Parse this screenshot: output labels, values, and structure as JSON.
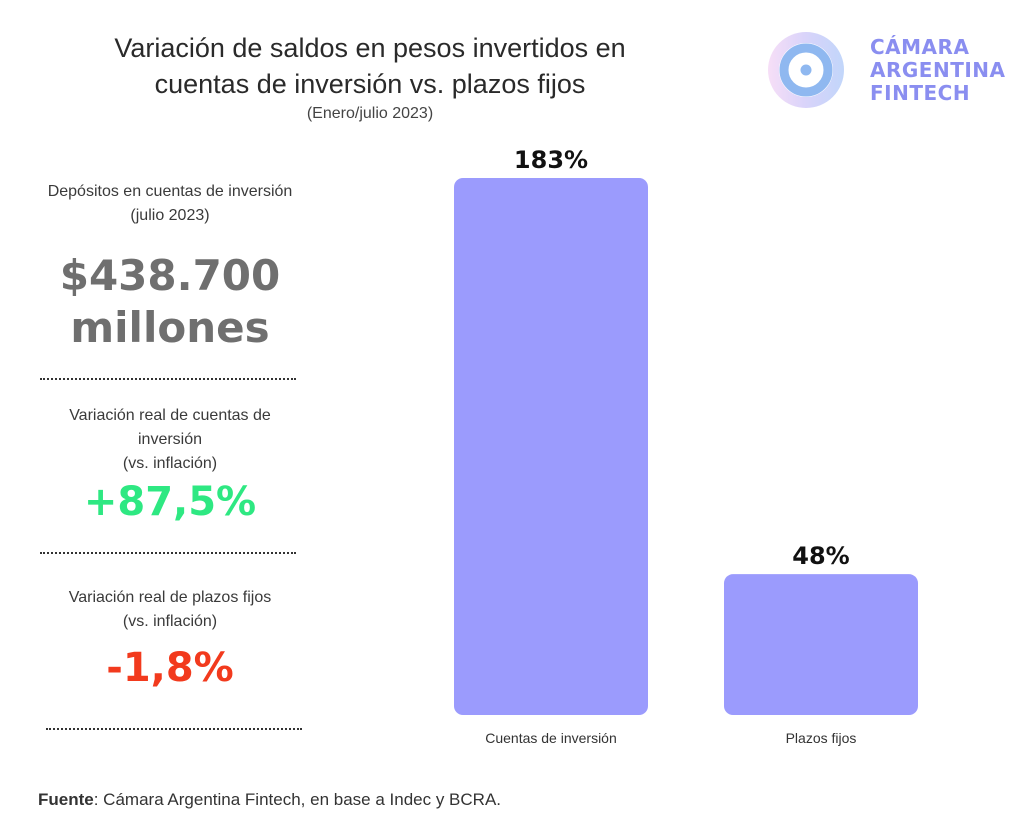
{
  "header": {
    "title_line1": "Variación de saldos en pesos invertidos en",
    "title_line2": "cuentas de inversión vs. plazos fijos",
    "subtitle": "(Enero/julio 2023)"
  },
  "logo": {
    "line1": "CÁMARA",
    "line2": "ARGENTINA",
    "line3": "FINTECH",
    "color": "#8a8ef0"
  },
  "sidebar": {
    "deposits_label_line1": "Depósitos en cuentas de inversión",
    "deposits_label_line2": "(julio 2023)",
    "deposits_value_line1": "$438.700",
    "deposits_value_line2": "millones",
    "inv_label_line1": "Variación real de cuentas de",
    "inv_label_line2": "inversión",
    "inv_label_line3": "(vs. inflación)",
    "inv_value": "+87,5%",
    "pf_label_line1": "Variación real de plazos fijos",
    "pf_label_line2": "(vs. inflación)",
    "pf_value": "-1,8%",
    "colors": {
      "value_gray": "#6f6f6f",
      "positive": "#2ee882",
      "negative": "#f23a1d"
    }
  },
  "footer": {
    "label": "Fuente",
    "text": ": Cámara Argentina Fintech, en base a Indec y BCRA."
  },
  "chart_data": {
    "type": "bar",
    "categories": [
      "Cuentas de inversión",
      "Plazos fijos"
    ],
    "values": [
      183,
      48
    ],
    "value_labels": [
      "183%",
      "48%"
    ],
    "ylim": [
      0,
      183
    ],
    "bar_color": "#9b9bfd",
    "grid": false,
    "legend": "none"
  }
}
